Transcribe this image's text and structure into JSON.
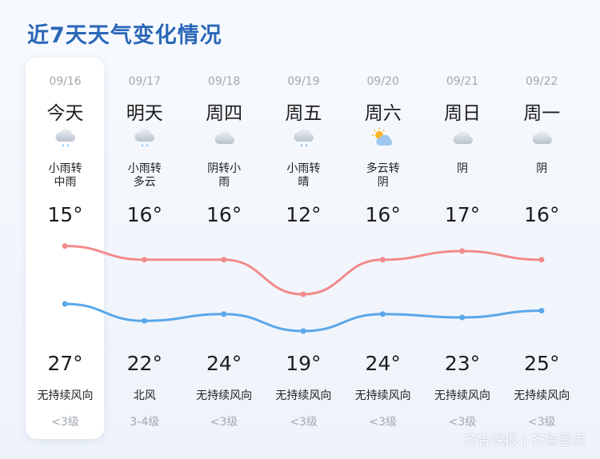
{
  "title": "近7天天气变化情况",
  "days": [
    {
      "date": "09/16",
      "day": "今天",
      "icon": "rain-cloud-icon",
      "weather": [
        "小雨转",
        "中雨"
      ],
      "low": "15°",
      "high": "27°",
      "wind_dir": "无持续风向",
      "wind_level": "<3级"
    },
    {
      "date": "09/17",
      "day": "明天",
      "icon": "rain-cloud-icon",
      "weather": [
        "小雨转",
        "多云"
      ],
      "low": "16°",
      "high": "22°",
      "wind_dir": "北风",
      "wind_level": "3-4级"
    },
    {
      "date": "09/18",
      "day": "周四",
      "icon": "cloud-icon",
      "weather": [
        "阴转小",
        "雨"
      ],
      "low": "16°",
      "high": "24°",
      "wind_dir": "无持续风向",
      "wind_level": "<3级"
    },
    {
      "date": "09/19",
      "day": "周五",
      "icon": "rain-cloud-icon",
      "weather": [
        "小雨转",
        "晴"
      ],
      "low": "12°",
      "high": "19°",
      "wind_dir": "无持续风向",
      "wind_level": "<3级"
    },
    {
      "date": "09/20",
      "day": "周六",
      "icon": "sun-cloud-icon",
      "weather": [
        "多云转",
        "阴"
      ],
      "low": "16°",
      "high": "24°",
      "wind_dir": "无持续风向",
      "wind_level": "<3级"
    },
    {
      "date": "09/21",
      "day": "周日",
      "icon": "cloud-icon",
      "weather": [
        "阴",
        ""
      ],
      "low": "17°",
      "high": "23°",
      "wind_dir": "无持续风向",
      "wind_level": "<3级"
    },
    {
      "date": "09/22",
      "day": "周一",
      "icon": "cloud-icon",
      "weather": [
        "阴",
        ""
      ],
      "low": "16°",
      "high": "25°",
      "wind_dir": "无持续风向",
      "wind_level": "<3级"
    }
  ],
  "chart_data": {
    "type": "line",
    "series": [
      {
        "values": [
          15,
          16,
          16,
          12,
          16,
          17,
          16
        ],
        "color": "#f28b8b"
      },
      {
        "values": [
          27,
          22,
          24,
          19,
          24,
          23,
          25
        ],
        "color": "#5aa7ea"
      }
    ]
  },
  "watermark": "齐鲁晚报 | 齐鲁壹点"
}
